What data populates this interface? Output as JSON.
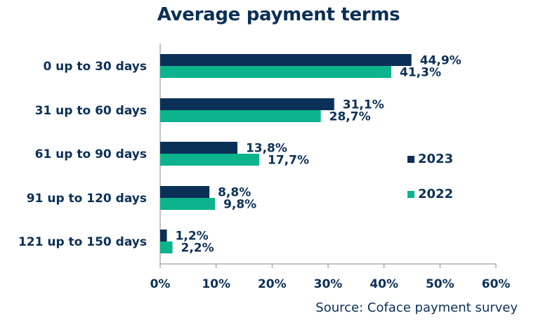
{
  "chart_data": {
    "type": "bar",
    "orientation": "horizontal",
    "title": "Average payment terms",
    "source": "Source: Coface payment survey",
    "categories": [
      "0 up to 30 days",
      "31 up to 60 days",
      "61 up to 90 days",
      "91 up to 120 days",
      "121 up to 150 days"
    ],
    "series": [
      {
        "name": "2023",
        "color": "#0b3057",
        "values": [
          44.9,
          31.1,
          13.8,
          8.8,
          1.2
        ],
        "labels": [
          "44,9%",
          "31,1%",
          "13,8%",
          "8,8%",
          "1,2%"
        ]
      },
      {
        "name": "2022",
        "color": "#0db38c",
        "values": [
          41.3,
          28.7,
          17.7,
          9.8,
          2.2
        ],
        "labels": [
          "41,3%",
          "28,7%",
          "17,7%",
          "9,8%",
          "2,2%"
        ]
      }
    ],
    "xlim": [
      0,
      60
    ],
    "x_ticks": [
      0,
      10,
      20,
      30,
      40,
      50,
      60
    ],
    "x_tick_labels": [
      "0%",
      "10%",
      "20%",
      "30%",
      "40%",
      "50%",
      "60%"
    ],
    "legend_position": "right",
    "grid": false
  }
}
